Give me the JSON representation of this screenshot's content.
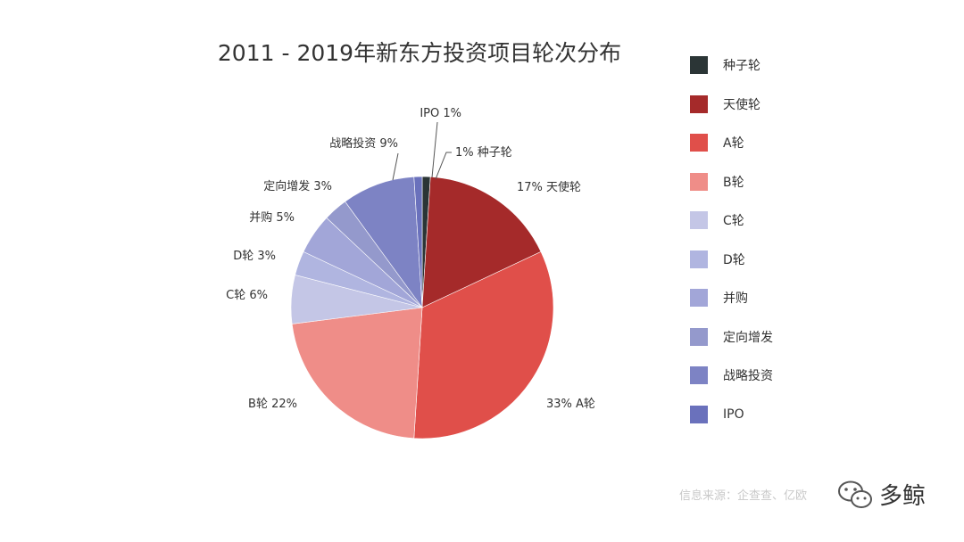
{
  "chart_data": {
    "type": "pie",
    "title": "2011 - 2019年新东方投资项目轮次分布",
    "legend_position": "right",
    "slices": [
      {
        "name": "种子轮",
        "value": 1,
        "color": "#2b3536",
        "label_text": "1% 种子轮"
      },
      {
        "name": "天使轮",
        "value": 17,
        "color": "#a52a2a",
        "label_text": "17% 天使轮"
      },
      {
        "name": "A轮",
        "value": 33,
        "color": "#e04f4a",
        "label_text": "33% A轮"
      },
      {
        "name": "B轮",
        "value": 22,
        "color": "#ef8d88",
        "label_text": "B轮 22%"
      },
      {
        "name": "C轮",
        "value": 6,
        "color": "#c4c6e6",
        "label_text": "C轮 6%"
      },
      {
        "name": "D轮",
        "value": 3,
        "color": "#b0b5e0",
        "label_text": "D轮 3%"
      },
      {
        "name": "并购",
        "value": 5,
        "color": "#a2a6d8",
        "label_text": "并购 5%"
      },
      {
        "name": "定向增发",
        "value": 3,
        "color": "#9499cc",
        "label_text": "定向增发 3%"
      },
      {
        "name": "战略投资",
        "value": 9,
        "color": "#7d83c4",
        "label_text": "战略投资 9%"
      },
      {
        "name": "IPO",
        "value": 1,
        "color": "#6a71bc",
        "label_text": "IPO 1%"
      }
    ]
  },
  "footer": {
    "source": "信息来源：企查查、亿欧",
    "brand": "多鲸"
  },
  "icons": {
    "brand_icon": "wechat-icon"
  }
}
